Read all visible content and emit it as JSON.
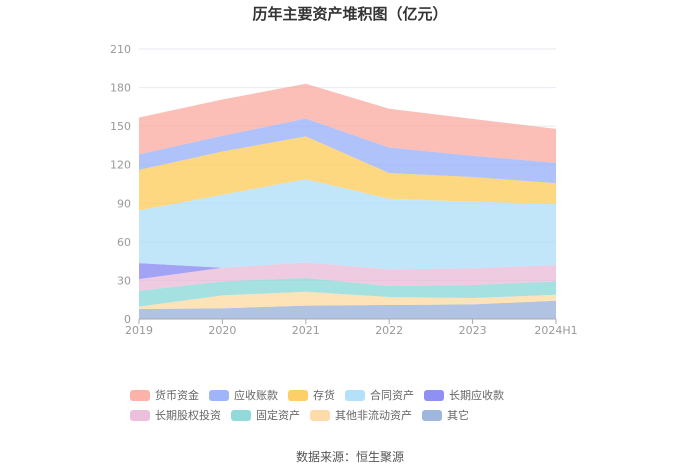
{
  "chart_data": {
    "type": "area",
    "stacked": true,
    "title": "历年主要资产堆积图（亿元）",
    "xlabel": "",
    "ylabel": "",
    "categories": [
      "2019",
      "2020",
      "2021",
      "2022",
      "2023",
      "2024H1"
    ],
    "ylim": [
      0,
      210
    ],
    "yticks": [
      0,
      30,
      60,
      90,
      120,
      150,
      180,
      210
    ],
    "grid": true,
    "legend_position": "bottom",
    "series": [
      {
        "name": "货币资金",
        "color": "#f9a49a",
        "values": [
          28.7,
          28.2,
          27.1,
          30.1,
          28.7,
          26.4
        ]
      },
      {
        "name": "应收账款",
        "color": "#8ea8f8",
        "values": [
          12.0,
          12.2,
          13.9,
          19.9,
          16.6,
          15.8
        ]
      },
      {
        "name": "存货",
        "color": "#fdc84c",
        "values": [
          31.5,
          33.7,
          33.2,
          20.0,
          19.2,
          16.1
        ]
      },
      {
        "name": "合同资产",
        "color": "#a6dcf8",
        "values": [
          41.0,
          56.7,
          64.8,
          54.9,
          51.8,
          47.6
        ]
      },
      {
        "name": "长期应收款",
        "color": "#7b7cf0",
        "values": [
          12.5,
          0,
          0,
          0,
          0,
          0
        ]
      },
      {
        "name": "长期股权投资",
        "color": "#e8b5d6",
        "values": [
          9.0,
          10.6,
          12.1,
          13.0,
          13.0,
          12.7
        ]
      },
      {
        "name": "固定资产",
        "color": "#7fd4d3",
        "values": [
          12.4,
          10.9,
          10.7,
          8.5,
          10.1,
          10.4
        ]
      },
      {
        "name": "其他非流动资产",
        "color": "#fdd69a",
        "values": [
          1.8,
          10.1,
          10.8,
          6.2,
          4.9,
          4.7
        ]
      },
      {
        "name": "其它",
        "color": "#8eaad6",
        "values": [
          7.8,
          8.3,
          10.4,
          10.9,
          11.4,
          14.2
        ]
      }
    ]
  },
  "source": "数据来源：恒生聚源"
}
